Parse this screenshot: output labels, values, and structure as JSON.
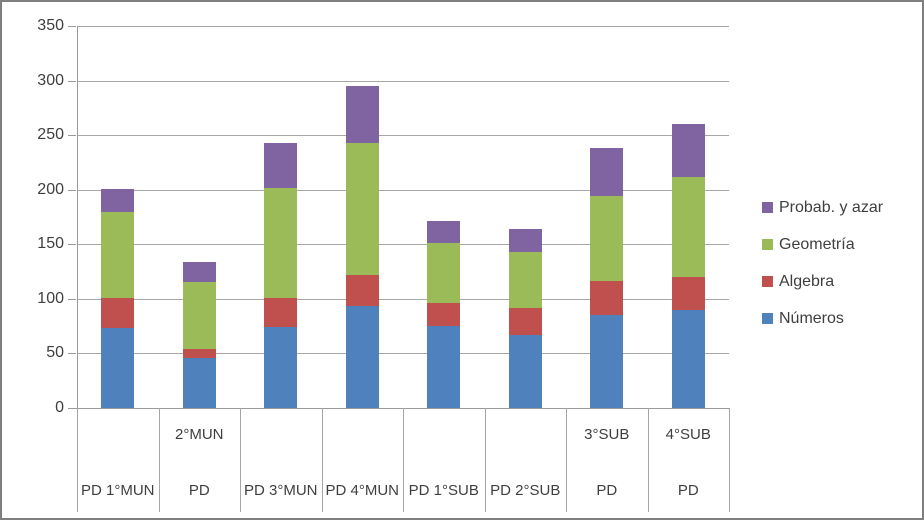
{
  "chart_data": {
    "type": "bar",
    "stacked": true,
    "title": "",
    "xlabel": "",
    "ylabel": "",
    "ylim": [
      0,
      350
    ],
    "ytick_step": 50,
    "yticks": [
      "0",
      "50",
      "100",
      "150",
      "200",
      "250",
      "300",
      "350"
    ],
    "grid": true,
    "categories": [
      {
        "line1": "",
        "line2": "PD 1°MUN"
      },
      {
        "line1": "2°MUN",
        "line2": "PD"
      },
      {
        "line1": "",
        "line2": "PD 3°MUN"
      },
      {
        "line1": "",
        "line2": "PD 4°MUN"
      },
      {
        "line1": "",
        "line2": "PD 1°SUB"
      },
      {
        "line1": "",
        "line2": "PD 2°SUB"
      },
      {
        "line1": "3°SUB",
        "line2": "PD"
      },
      {
        "line1": "4°SUB",
        "line2": "PD"
      }
    ],
    "series": [
      {
        "name": "Números",
        "color": "#4F81BD",
        "values": [
          73,
          46,
          74,
          93,
          75,
          67,
          85,
          90
        ]
      },
      {
        "name": "Algebra",
        "color": "#C0504D",
        "values": [
          28,
          8,
          27,
          29,
          21,
          25,
          31,
          30
        ]
      },
      {
        "name": "Geometría",
        "color": "#9BBB59",
        "values": [
          79,
          61,
          101,
          121,
          55,
          51,
          78,
          92
        ]
      },
      {
        "name": "Probab. y azar",
        "color": "#8064A2",
        "values": [
          21,
          19,
          41,
          52,
          20,
          21,
          44,
          48
        ]
      }
    ],
    "stack_totals": [
      201,
      134,
      243,
      295,
      171,
      164,
      238,
      260
    ],
    "legend": {
      "position": "right",
      "items_top_to_bottom": [
        "Probab. y azar",
        "Geometría",
        "Algebra",
        "Números"
      ]
    }
  },
  "colors": {
    "plot_background": "#FFFFFF",
    "gridline": "#A6A6A6",
    "axis": "#9A9A9A",
    "outer_border": "#7F7F7F",
    "text": "#3F3F3F"
  }
}
